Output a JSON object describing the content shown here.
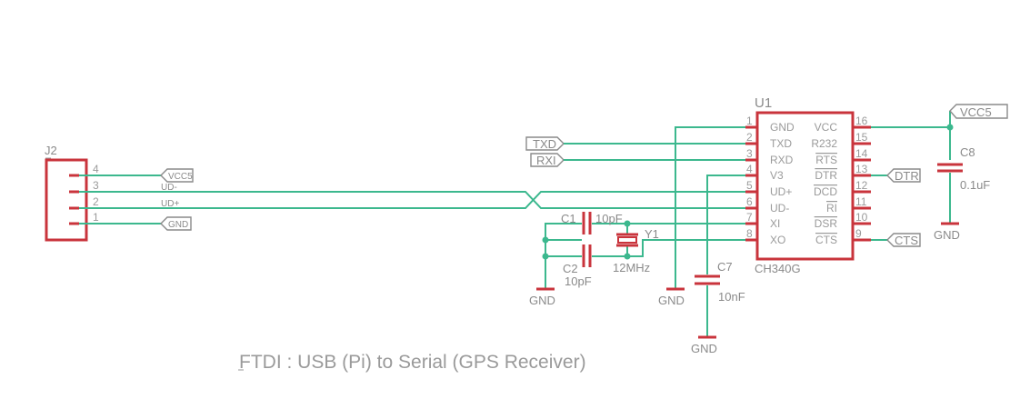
{
  "title": "FTDI : USB (Pi) to Serial (GPS Receiver)",
  "colors": {
    "wire": "#3cb88e",
    "part": "#c9343c",
    "text": "#8a8a8a",
    "background": "#ffffff"
  },
  "j2": {
    "ref": "J2",
    "pins": [
      "4",
      "3",
      "2",
      "1"
    ],
    "nets": [
      "VCC5",
      "UD-",
      "UD+",
      "GND"
    ]
  },
  "u1": {
    "ref": "U1",
    "value": "CH340G",
    "left_pins": [
      {
        "num": "1",
        "name": "GND"
      },
      {
        "num": "2",
        "name": "TXD"
      },
      {
        "num": "3",
        "name": "RXD"
      },
      {
        "num": "4",
        "name": "V3"
      },
      {
        "num": "5",
        "name": "UD+"
      },
      {
        "num": "6",
        "name": "UD-"
      },
      {
        "num": "7",
        "name": "XI"
      },
      {
        "num": "8",
        "name": "XO"
      }
    ],
    "right_pins": [
      {
        "num": "16",
        "name": "VCC"
      },
      {
        "num": "15",
        "name": "R232"
      },
      {
        "num": "14",
        "name": "RTS"
      },
      {
        "num": "13",
        "name": "DTR"
      },
      {
        "num": "12",
        "name": "DCD"
      },
      {
        "num": "11",
        "name": "RI"
      },
      {
        "num": "10",
        "name": "DSR"
      },
      {
        "num": "9",
        "name": "CTS"
      }
    ]
  },
  "ports": {
    "txd": "TXD",
    "rxd": "RXI",
    "dtr": "DTR",
    "cts": "CTS",
    "vcc5": "VCC5"
  },
  "c1": {
    "ref": "C1",
    "value": "10pF"
  },
  "c2": {
    "ref": "C2",
    "value": "10pF"
  },
  "y1": {
    "ref": "Y1",
    "value": "12MHz"
  },
  "c7": {
    "ref": "C7",
    "value": "10nF"
  },
  "c8": {
    "ref": "C8",
    "value": "0.1uF"
  },
  "gnd_label": "GND"
}
